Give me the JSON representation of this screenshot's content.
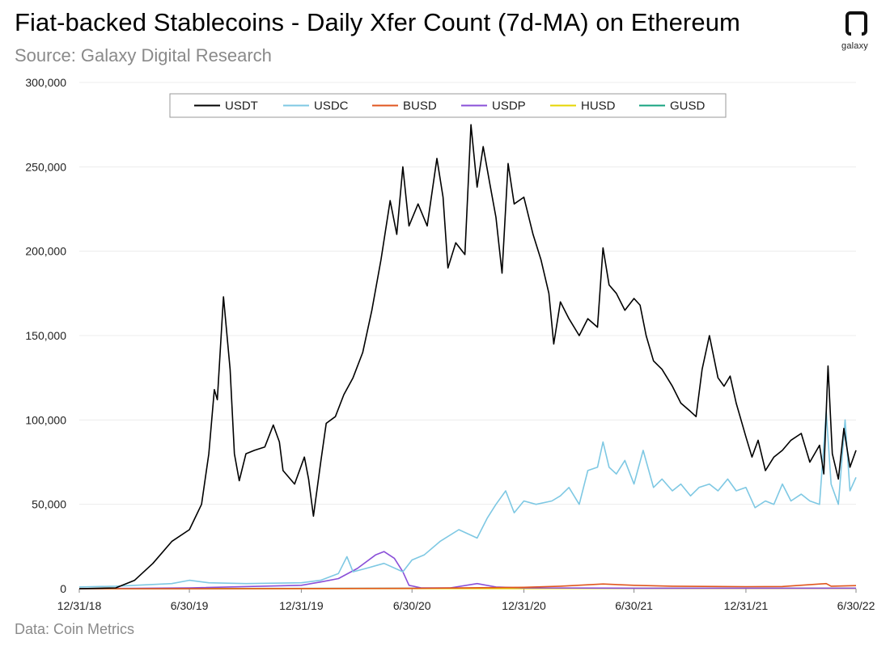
{
  "header": {
    "title": "Fiat-backed Stablecoins - Daily Xfer Count (7d-MA) on Ethereum",
    "subtitle": "Source: Galaxy Digital Research"
  },
  "footer": {
    "text": "Data: Coin Metrics"
  },
  "logo": {
    "text": "galaxy",
    "icon": "galaxy-logo-icon"
  },
  "chart_data": {
    "type": "line",
    "title": "Fiat-backed Stablecoins - Daily Xfer Count (7d-MA) on Ethereum",
    "xlabel": "",
    "ylabel": "",
    "ylim": [
      0,
      300000
    ],
    "xlim": [
      "2018-12-31",
      "2022-06-30"
    ],
    "yticks": [
      0,
      50000,
      100000,
      150000,
      200000,
      250000,
      300000
    ],
    "ytick_labels": [
      "0",
      "50,000",
      "100,000",
      "150,000",
      "200,000",
      "250,000",
      "300,000"
    ],
    "xticks": [
      "2018-12-31",
      "2019-06-30",
      "2019-12-31",
      "2020-06-30",
      "2020-12-31",
      "2021-06-30",
      "2021-12-31",
      "2022-06-30"
    ],
    "xtick_labels": [
      "12/31/18",
      "6/30/19",
      "12/31/19",
      "6/30/20",
      "12/31/20",
      "6/30/21",
      "12/31/21",
      "6/30/22"
    ],
    "grid": "horizontal",
    "legend_position": "top-center",
    "series": [
      {
        "name": "USDT",
        "color": "#000000",
        "points": [
          [
            "2018-12-31",
            0
          ],
          [
            "2019-03-01",
            500
          ],
          [
            "2019-04-01",
            5000
          ],
          [
            "2019-05-01",
            15000
          ],
          [
            "2019-06-01",
            28000
          ],
          [
            "2019-06-30",
            35000
          ],
          [
            "2019-07-20",
            50000
          ],
          [
            "2019-08-01",
            80000
          ],
          [
            "2019-08-10",
            118000
          ],
          [
            "2019-08-15",
            112000
          ],
          [
            "2019-08-25",
            173000
          ],
          [
            "2019-09-05",
            130000
          ],
          [
            "2019-09-12",
            80000
          ],
          [
            "2019-09-20",
            64000
          ],
          [
            "2019-10-01",
            80000
          ],
          [
            "2019-10-15",
            82000
          ],
          [
            "2019-11-01",
            84000
          ],
          [
            "2019-11-15",
            97000
          ],
          [
            "2019-11-25",
            87000
          ],
          [
            "2019-12-01",
            70000
          ],
          [
            "2019-12-20",
            62000
          ],
          [
            "2020-01-05",
            78000
          ],
          [
            "2020-01-12",
            65000
          ],
          [
            "2020-01-20",
            43000
          ],
          [
            "2020-02-01",
            75000
          ],
          [
            "2020-02-10",
            98000
          ],
          [
            "2020-02-25",
            102000
          ],
          [
            "2020-03-10",
            115000
          ],
          [
            "2020-03-25",
            125000
          ],
          [
            "2020-04-10",
            140000
          ],
          [
            "2020-04-25",
            165000
          ],
          [
            "2020-05-10",
            195000
          ],
          [
            "2020-05-25",
            230000
          ],
          [
            "2020-06-05",
            210000
          ],
          [
            "2020-06-15",
            250000
          ],
          [
            "2020-06-25",
            215000
          ],
          [
            "2020-07-10",
            228000
          ],
          [
            "2020-07-25",
            215000
          ],
          [
            "2020-08-10",
            255000
          ],
          [
            "2020-08-20",
            232000
          ],
          [
            "2020-08-28",
            190000
          ],
          [
            "2020-09-10",
            205000
          ],
          [
            "2020-09-25",
            198000
          ],
          [
            "2020-10-05",
            275000
          ],
          [
            "2020-10-15",
            238000
          ],
          [
            "2020-10-25",
            262000
          ],
          [
            "2020-11-05",
            240000
          ],
          [
            "2020-11-15",
            220000
          ],
          [
            "2020-11-25",
            187000
          ],
          [
            "2020-12-05",
            252000
          ],
          [
            "2020-12-15",
            228000
          ],
          [
            "2020-12-31",
            232000
          ],
          [
            "2021-01-15",
            210000
          ],
          [
            "2021-01-28",
            195000
          ],
          [
            "2021-02-10",
            175000
          ],
          [
            "2021-02-18",
            145000
          ],
          [
            "2021-03-01",
            170000
          ],
          [
            "2021-03-15",
            160000
          ],
          [
            "2021-04-01",
            150000
          ],
          [
            "2021-04-15",
            160000
          ],
          [
            "2021-05-01",
            155000
          ],
          [
            "2021-05-10",
            202000
          ],
          [
            "2021-05-20",
            180000
          ],
          [
            "2021-06-01",
            175000
          ],
          [
            "2021-06-15",
            165000
          ],
          [
            "2021-06-30",
            172000
          ],
          [
            "2021-07-10",
            168000
          ],
          [
            "2021-07-20",
            150000
          ],
          [
            "2021-08-01",
            135000
          ],
          [
            "2021-08-15",
            130000
          ],
          [
            "2021-09-01",
            120000
          ],
          [
            "2021-09-15",
            110000
          ],
          [
            "2021-10-01",
            105000
          ],
          [
            "2021-10-10",
            102000
          ],
          [
            "2021-10-20",
            130000
          ],
          [
            "2021-11-01",
            150000
          ],
          [
            "2021-11-15",
            125000
          ],
          [
            "2021-11-25",
            120000
          ],
          [
            "2021-12-05",
            126000
          ],
          [
            "2021-12-15",
            110000
          ],
          [
            "2021-12-31",
            90000
          ],
          [
            "2022-01-10",
            78000
          ],
          [
            "2022-01-20",
            88000
          ],
          [
            "2022-02-01",
            70000
          ],
          [
            "2022-02-15",
            78000
          ],
          [
            "2022-03-01",
            82000
          ],
          [
            "2022-03-15",
            88000
          ],
          [
            "2022-04-01",
            92000
          ],
          [
            "2022-04-15",
            75000
          ],
          [
            "2022-05-01",
            85000
          ],
          [
            "2022-05-08",
            68000
          ],
          [
            "2022-05-15",
            132000
          ],
          [
            "2022-05-22",
            80000
          ],
          [
            "2022-06-01",
            65000
          ],
          [
            "2022-06-10",
            95000
          ],
          [
            "2022-06-20",
            72000
          ],
          [
            "2022-06-30",
            82000
          ]
        ]
      },
      {
        "name": "USDC",
        "color": "#7ec8e3",
        "points": [
          [
            "2018-12-31",
            1000
          ],
          [
            "2019-03-01",
            1500
          ],
          [
            "2019-06-01",
            3000
          ],
          [
            "2019-06-30",
            5000
          ],
          [
            "2019-08-01",
            3500
          ],
          [
            "2019-10-01",
            3000
          ],
          [
            "2019-12-31",
            3500
          ],
          [
            "2020-02-01",
            5000
          ],
          [
            "2020-03-01",
            9000
          ],
          [
            "2020-03-15",
            19000
          ],
          [
            "2020-03-25",
            10000
          ],
          [
            "2020-04-15",
            12000
          ],
          [
            "2020-05-15",
            15000
          ],
          [
            "2020-06-15",
            10000
          ],
          [
            "2020-06-30",
            17000
          ],
          [
            "2020-07-20",
            20000
          ],
          [
            "2020-08-15",
            28000
          ],
          [
            "2020-09-15",
            35000
          ],
          [
            "2020-10-15",
            30000
          ],
          [
            "2020-11-01",
            42000
          ],
          [
            "2020-11-15",
            50000
          ],
          [
            "2020-12-01",
            58000
          ],
          [
            "2020-12-15",
            45000
          ],
          [
            "2020-12-31",
            52000
          ],
          [
            "2021-01-20",
            50000
          ],
          [
            "2021-02-15",
            52000
          ],
          [
            "2021-03-01",
            55000
          ],
          [
            "2021-03-15",
            60000
          ],
          [
            "2021-04-01",
            50000
          ],
          [
            "2021-04-15",
            70000
          ],
          [
            "2021-05-01",
            72000
          ],
          [
            "2021-05-10",
            87000
          ],
          [
            "2021-05-20",
            72000
          ],
          [
            "2021-06-01",
            68000
          ],
          [
            "2021-06-15",
            76000
          ],
          [
            "2021-06-30",
            62000
          ],
          [
            "2021-07-15",
            82000
          ],
          [
            "2021-08-01",
            60000
          ],
          [
            "2021-08-15",
            65000
          ],
          [
            "2021-09-01",
            58000
          ],
          [
            "2021-09-15",
            62000
          ],
          [
            "2021-10-01",
            55000
          ],
          [
            "2021-10-15",
            60000
          ],
          [
            "2021-11-01",
            62000
          ],
          [
            "2021-11-15",
            58000
          ],
          [
            "2021-12-01",
            65000
          ],
          [
            "2021-12-15",
            58000
          ],
          [
            "2021-12-31",
            60000
          ],
          [
            "2022-01-15",
            48000
          ],
          [
            "2022-02-01",
            52000
          ],
          [
            "2022-02-15",
            50000
          ],
          [
            "2022-03-01",
            62000
          ],
          [
            "2022-03-15",
            52000
          ],
          [
            "2022-04-01",
            56000
          ],
          [
            "2022-04-15",
            52000
          ],
          [
            "2022-05-01",
            50000
          ],
          [
            "2022-05-12",
            105000
          ],
          [
            "2022-05-20",
            62000
          ],
          [
            "2022-06-01",
            50000
          ],
          [
            "2022-06-12",
            100000
          ],
          [
            "2022-06-20",
            58000
          ],
          [
            "2022-06-30",
            66000
          ]
        ]
      },
      {
        "name": "BUSD",
        "color": "#e0561e",
        "points": [
          [
            "2018-12-31",
            0
          ],
          [
            "2019-09-01",
            0
          ],
          [
            "2020-06-30",
            200
          ],
          [
            "2020-12-31",
            800
          ],
          [
            "2021-03-01",
            1500
          ],
          [
            "2021-05-10",
            2800
          ],
          [
            "2021-06-30",
            2000
          ],
          [
            "2021-09-01",
            1500
          ],
          [
            "2021-12-31",
            1200
          ],
          [
            "2022-03-01",
            1300
          ],
          [
            "2022-05-12",
            3000
          ],
          [
            "2022-05-20",
            1500
          ],
          [
            "2022-06-30",
            1800
          ]
        ]
      },
      {
        "name": "USDP",
        "color": "#8a4fd8",
        "points": [
          [
            "2018-12-31",
            0
          ],
          [
            "2019-06-30",
            500
          ],
          [
            "2019-12-31",
            2000
          ],
          [
            "2020-02-01",
            4000
          ],
          [
            "2020-03-01",
            6000
          ],
          [
            "2020-04-01",
            12000
          ],
          [
            "2020-05-01",
            20000
          ],
          [
            "2020-05-15",
            22000
          ],
          [
            "2020-06-01",
            18000
          ],
          [
            "2020-06-15",
            10000
          ],
          [
            "2020-06-25",
            2000
          ],
          [
            "2020-07-15",
            500
          ],
          [
            "2020-09-01",
            500
          ],
          [
            "2020-10-15",
            3000
          ],
          [
            "2020-11-15",
            1000
          ],
          [
            "2020-12-31",
            500
          ],
          [
            "2021-06-30",
            300
          ],
          [
            "2022-06-30",
            300
          ]
        ]
      },
      {
        "name": "HUSD",
        "color": "#e6d400",
        "points": [
          [
            "2018-12-31",
            0
          ],
          [
            "2020-12-31",
            100
          ],
          [
            "2021-06-30",
            200
          ],
          [
            "2022-06-30",
            150
          ]
        ]
      },
      {
        "name": "GUSD",
        "color": "#14a37f",
        "points": [
          [
            "2018-12-31",
            100
          ],
          [
            "2019-06-30",
            100
          ],
          [
            "2020-06-30",
            200
          ],
          [
            "2021-06-30",
            200
          ],
          [
            "2022-06-30",
            300
          ]
        ]
      }
    ]
  }
}
